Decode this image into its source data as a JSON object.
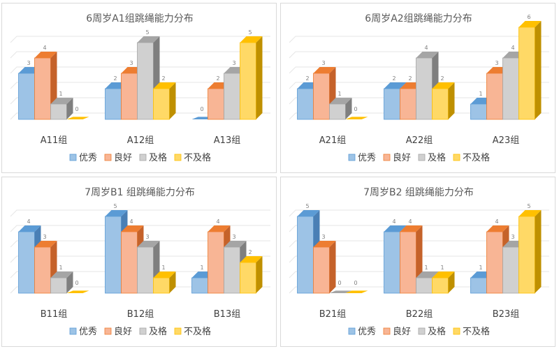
{
  "legend": [
    "优秀",
    "良好",
    "及格",
    "不及格"
  ],
  "colors": {
    "优秀": {
      "front": "#9dc3e6",
      "top": "#5b9bd5",
      "side": "#4a7fb5",
      "stroke": "#5b9bd5"
    },
    "良好": {
      "front": "#f8b595",
      "top": "#ed7d31",
      "side": "#c5622a",
      "stroke": "#ed7d31"
    },
    "及格": {
      "front": "#d0d0d0",
      "top": "#a5a5a5",
      "side": "#7f7f7f",
      "stroke": "#a5a5a5"
    },
    "不及格": {
      "front": "#ffd966",
      "top": "#ffc000",
      "side": "#bf9000",
      "stroke": "#ffc000"
    }
  },
  "chart_data": [
    {
      "type": "bar",
      "title": "6周岁A1组跳绳能力分布",
      "categories": [
        "A11组",
        "A12组",
        "A13组"
      ],
      "series": [
        {
          "name": "优秀",
          "values": [
            3,
            2,
            0
          ]
        },
        {
          "name": "良好",
          "values": [
            4,
            3,
            2
          ]
        },
        {
          "name": "及格",
          "values": [
            1,
            5,
            3
          ]
        },
        {
          "name": "不及格",
          "values": [
            0,
            2,
            5
          ]
        }
      ],
      "ylim": [
        0,
        6
      ],
      "grid": true,
      "legend_position": "bottom"
    },
    {
      "type": "bar",
      "title": "6周岁A2组跳绳能力分布",
      "categories": [
        "A21组",
        "A22组",
        "A23组"
      ],
      "series": [
        {
          "name": "优秀",
          "values": [
            2,
            2,
            1
          ]
        },
        {
          "name": "良好",
          "values": [
            3,
            2,
            3
          ]
        },
        {
          "name": "及格",
          "values": [
            1,
            4,
            4
          ]
        },
        {
          "name": "不及格",
          "values": [
            0,
            2,
            6
          ]
        }
      ],
      "ylim": [
        0,
        7
      ],
      "grid": true,
      "legend_position": "bottom"
    },
    {
      "type": "bar",
      "title": "7周岁B1 组跳绳能力分布",
      "categories": [
        "B11组",
        "B12组",
        "B13组"
      ],
      "series": [
        {
          "name": "优秀",
          "values": [
            4,
            5,
            1
          ]
        },
        {
          "name": "良好",
          "values": [
            3,
            4,
            4
          ]
        },
        {
          "name": "及格",
          "values": [
            1,
            3,
            3
          ]
        },
        {
          "name": "不及格",
          "values": [
            0,
            1,
            2
          ]
        }
      ],
      "ylim": [
        0,
        5
      ],
      "grid": true,
      "legend_position": "bottom"
    },
    {
      "type": "bar",
      "title": "7周岁B2 组跳绳能力分布",
      "categories": [
        "B21组",
        "B22组",
        "B23组"
      ],
      "series": [
        {
          "name": "优秀",
          "values": [
            5,
            4,
            1
          ]
        },
        {
          "name": "良好",
          "values": [
            3,
            4,
            4
          ]
        },
        {
          "name": "及格",
          "values": [
            0,
            1,
            3
          ]
        },
        {
          "name": "不及格",
          "values": [
            0,
            1,
            5
          ]
        }
      ],
      "ylim": [
        0,
        5
      ],
      "grid": true,
      "legend_position": "bottom"
    }
  ]
}
